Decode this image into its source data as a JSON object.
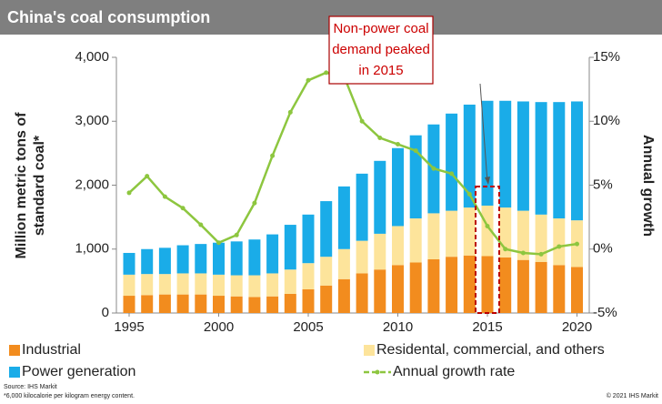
{
  "chart_data": {
    "type": "stacked-bar-line",
    "title": "China's coal consumption",
    "ylabel": [
      "Million metric tons of",
      "standard coal*"
    ],
    "y2label": "Annual growth",
    "annotation": [
      "Non-power coal",
      "demand peaked",
      "in 2015"
    ],
    "x": [
      1995,
      1996,
      1997,
      1998,
      1999,
      2000,
      2001,
      2002,
      2003,
      2004,
      2005,
      2006,
      2007,
      2008,
      2009,
      2010,
      2011,
      2012,
      2013,
      2014,
      2015,
      2016,
      2017,
      2018,
      2019,
      2020
    ],
    "xlim": [
      1995,
      2020
    ],
    "xticks": [
      1995,
      2000,
      2005,
      2010,
      2015,
      2020
    ],
    "ylim": [
      0,
      4000
    ],
    "yticks": [
      0,
      {
        "value": 1000,
        "label": "1,000"
      },
      {
        "value": 2000,
        "label": "2,000"
      },
      {
        "value": 3000,
        "label": "3,000"
      },
      {
        "value": 4000,
        "label": "4,000"
      }
    ],
    "y2lim": [
      -5,
      15
    ],
    "y2ticks": [
      {
        "value": -5,
        "label": "-5%"
      },
      {
        "value": 0,
        "label": "0%"
      },
      {
        "value": 5,
        "label": "5%"
      },
      {
        "value": 10,
        "label": "10%"
      },
      {
        "value": 15,
        "label": "15%"
      }
    ],
    "series": [
      {
        "name": "Industrial",
        "color": "#f28c1e",
        "values": [
          270,
          280,
          290,
          290,
          290,
          270,
          260,
          250,
          260,
          300,
          370,
          430,
          530,
          620,
          680,
          750,
          790,
          840,
          880,
          900,
          890,
          870,
          830,
          800,
          750,
          720
        ]
      },
      {
        "name": "Residental, commercial, and others",
        "color": "#fde49b",
        "values": [
          330,
          330,
          320,
          330,
          330,
          330,
          330,
          340,
          360,
          380,
          410,
          450,
          470,
          510,
          560,
          610,
          690,
          720,
          720,
          750,
          790,
          780,
          770,
          740,
          730,
          730
        ]
      },
      {
        "name": "Power generation",
        "color": "#1aace8",
        "values": [
          340,
          390,
          410,
          440,
          460,
          500,
          530,
          560,
          610,
          700,
          760,
          870,
          980,
          1050,
          1140,
          1220,
          1300,
          1390,
          1520,
          1610,
          1640,
          1670,
          1710,
          1760,
          1820,
          1860
        ]
      },
      {
        "name": "Annual growth rate",
        "color": "#8dc63f",
        "axis": "y2",
        "values": [
          4.4,
          5.7,
          4.1,
          3.2,
          1.9,
          0.5,
          1.1,
          3.6,
          7.3,
          10.7,
          13.2,
          13.8,
          13.5,
          10,
          8.7,
          8.2,
          7.7,
          6.3,
          5.9,
          4.3,
          1.8,
          0,
          -0.3,
          -0.4,
          0.2,
          0.4
        ]
      }
    ],
    "source": "Source: IHS Markit",
    "footnote": "*6,000 kilocalorie per kilogram energy content.",
    "copyright": "© 2021 IHS Markit"
  }
}
